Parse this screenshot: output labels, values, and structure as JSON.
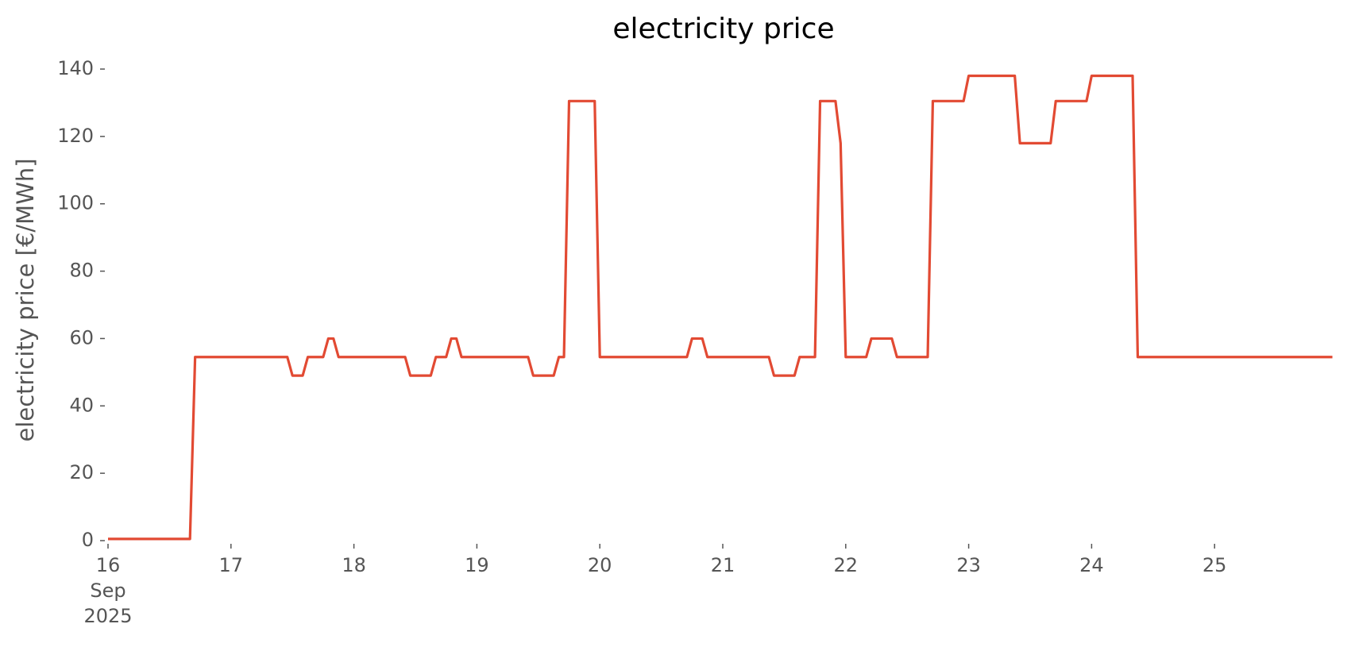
{
  "chart_data": {
    "type": "line",
    "title": "electricity price",
    "y_label": "electricity price [€/MWh]",
    "xlim": [
      "2025-09-16T00:00",
      "2025-09-26T00:00"
    ],
    "xticks": [
      {
        "value": "2025-09-16T00:00",
        "label": "16\nSep\n2025"
      },
      {
        "value": "2025-09-17T00:00",
        "label": "17"
      },
      {
        "value": "2025-09-18T00:00",
        "label": "18"
      },
      {
        "value": "2025-09-19T00:00",
        "label": "19"
      },
      {
        "value": "2025-09-20T00:00",
        "label": "20"
      },
      {
        "value": "2025-09-21T00:00",
        "label": "21"
      },
      {
        "value": "2025-09-22T00:00",
        "label": "22"
      },
      {
        "value": "2025-09-23T00:00",
        "label": "23"
      },
      {
        "value": "2025-09-24T00:00",
        "label": "24"
      },
      {
        "value": "2025-09-25T00:00",
        "label": "25"
      }
    ],
    "ylim": [
      0,
      140
    ],
    "yticks": [
      0,
      20,
      40,
      60,
      80,
      100,
      120,
      140
    ],
    "grid": false,
    "x": [
      "2025-09-16T00:00",
      "2025-09-16T16:00",
      "2025-09-16T17:00",
      "2025-09-17T11:00",
      "2025-09-17T12:00",
      "2025-09-17T14:00",
      "2025-09-17T15:00",
      "2025-09-17T18:00",
      "2025-09-17T19:00",
      "2025-09-17T20:00",
      "2025-09-17T21:00",
      "2025-09-18T10:00",
      "2025-09-18T11:00",
      "2025-09-18T15:00",
      "2025-09-18T16:00",
      "2025-09-18T18:00",
      "2025-09-18T19:00",
      "2025-09-18T20:00",
      "2025-09-18T21:00",
      "2025-09-19T10:00",
      "2025-09-19T11:00",
      "2025-09-19T15:00",
      "2025-09-19T16:00",
      "2025-09-19T17:00",
      "2025-09-19T18:00",
      "2025-09-19T23:00",
      "2025-09-20T00:00",
      "2025-09-20T17:00",
      "2025-09-20T18:00",
      "2025-09-20T20:00",
      "2025-09-20T21:00",
      "2025-09-21T09:00",
      "2025-09-21T10:00",
      "2025-09-21T14:00",
      "2025-09-21T15:00",
      "2025-09-21T18:00",
      "2025-09-21T19:00",
      "2025-09-21T22:00",
      "2025-09-21T23:00",
      "2025-09-22T00:00",
      "2025-09-22T04:00",
      "2025-09-22T05:00",
      "2025-09-22T09:00",
      "2025-09-22T10:00",
      "2025-09-22T16:00",
      "2025-09-22T17:00",
      "2025-09-22T23:00",
      "2025-09-23T00:00",
      "2025-09-23T09:00",
      "2025-09-23T10:00",
      "2025-09-23T16:00",
      "2025-09-23T17:00",
      "2025-09-23T23:00",
      "2025-09-24T00:00",
      "2025-09-24T08:00",
      "2025-09-24T09:00",
      "2025-09-25T23:00"
    ],
    "series": [
      {
        "color": "#e24a33",
        "values": [
          0.5,
          0.5,
          54.5,
          54.5,
          49,
          49,
          54.5,
          54.5,
          60,
          60,
          54.5,
          54.5,
          49,
          49,
          54.5,
          54.5,
          60,
          60,
          54.5,
          54.5,
          49,
          49,
          54.5,
          54.5,
          130.5,
          130.5,
          54.5,
          54.5,
          60,
          60,
          54.5,
          54.5,
          49,
          49,
          54.5,
          54.5,
          130.5,
          130.5,
          118,
          54.5,
          54.5,
          60,
          60,
          54.5,
          54.5,
          130.5,
          130.5,
          138,
          138,
          118,
          118,
          130.5,
          130.5,
          138,
          138,
          54.5,
          54.5
        ]
      }
    ]
  }
}
